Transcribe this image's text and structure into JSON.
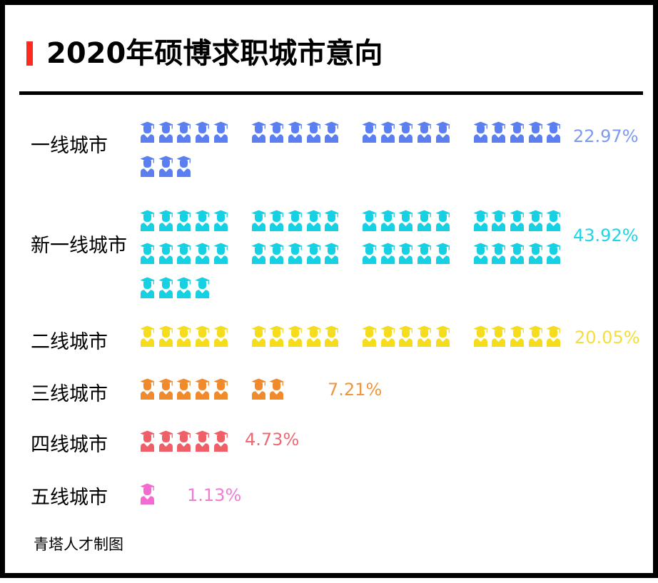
{
  "title": "2020年硕博求职城市意向",
  "accent_color": "#ff2a1f",
  "source": "青塔人才制图",
  "icon": "graduate-person-icon",
  "chart_data": {
    "type": "pictogram",
    "title": "2020年硕博求职城市意向",
    "categories": [
      "一线城市",
      "新一线城市",
      "二线城市",
      "三线城市",
      "四线城市",
      "五线城市"
    ],
    "values": [
      22.97,
      43.92,
      20.05,
      7.21,
      4.73,
      1.13
    ],
    "labels": [
      "22.97%",
      "43.92%",
      "20.05%",
      "7.21%",
      "4.73%",
      "1.13%"
    ],
    "icon_counts": [
      23,
      44,
      20,
      7,
      5,
      1
    ],
    "colors": [
      "#5b7ff0",
      "#15d1e3",
      "#f5dc1c",
      "#f08a2b",
      "#ee5f68",
      "#f26bd1"
    ],
    "label_colors": [
      "#7d9af2",
      "#1fd5e6",
      "#f4de3a",
      "#f0953c",
      "#ec6a72",
      "#f27bd6"
    ]
  }
}
